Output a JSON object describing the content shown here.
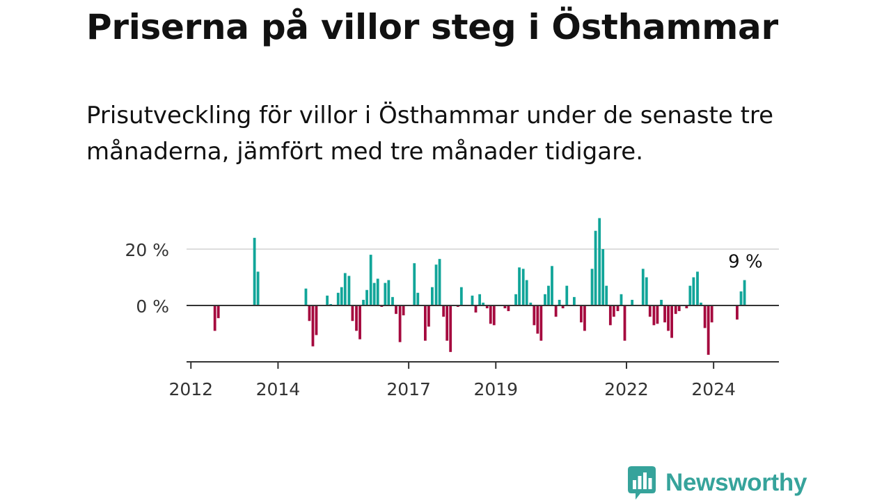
{
  "title": "Priserna på villor steg i Östhammar",
  "subtitle": "Prisutveckling för villor i Östhammar under de senaste tre månaderna, jämfört med tre månader tidigare.",
  "brand": {
    "name": "Newsworthy",
    "color": "#36a39b"
  },
  "colors": {
    "positive": "#11a599",
    "negative": "#a5093e",
    "grid": "#dddddd",
    "zero_line": "#333333",
    "axis": "#333333"
  },
  "chart_data": {
    "type": "bar",
    "title": "",
    "xlabel": "",
    "ylabel": "",
    "x_unit": "year",
    "xlim": [
      2011.9,
      2025.5
    ],
    "ylim": [
      -20,
      30
    ],
    "grid": true,
    "y_ticks": [
      {
        "value": 0,
        "label": "0 %"
      },
      {
        "value": 20,
        "label": "20 %"
      }
    ],
    "x_ticks": [
      {
        "value": 2012,
        "label": "2012"
      },
      {
        "value": 2014,
        "label": "2014"
      },
      {
        "value": 2017,
        "label": "2017"
      },
      {
        "value": 2019,
        "label": "2019"
      },
      {
        "value": 2022,
        "label": "2022"
      },
      {
        "value": 2024,
        "label": "2024"
      }
    ],
    "annotation": {
      "text": "9 %",
      "x": 2024.7,
      "y": 9
    },
    "points": [
      [
        2012.55,
        -9
      ],
      [
        2012.63,
        -4.5
      ],
      [
        2013.46,
        24
      ],
      [
        2013.54,
        12
      ],
      [
        2014.64,
        6
      ],
      [
        2014.72,
        -5.5
      ],
      [
        2014.8,
        -14.5
      ],
      [
        2014.88,
        -10.5
      ],
      [
        2015.13,
        3.5
      ],
      [
        2015.21,
        0.5
      ],
      [
        2015.38,
        4.5
      ],
      [
        2015.46,
        6.5
      ],
      [
        2015.54,
        11.5
      ],
      [
        2015.63,
        10.5
      ],
      [
        2015.71,
        -5.5
      ],
      [
        2015.8,
        -9
      ],
      [
        2015.88,
        -12
      ],
      [
        2015.96,
        2
      ],
      [
        2016.04,
        5.5
      ],
      [
        2016.13,
        18
      ],
      [
        2016.21,
        8
      ],
      [
        2016.29,
        9.5
      ],
      [
        2016.38,
        -0.5
      ],
      [
        2016.46,
        8
      ],
      [
        2016.54,
        9
      ],
      [
        2016.63,
        3
      ],
      [
        2016.71,
        -3
      ],
      [
        2016.8,
        -13
      ],
      [
        2016.88,
        -3.5
      ],
      [
        2017.13,
        15
      ],
      [
        2017.21,
        4.5
      ],
      [
        2017.38,
        -12.5
      ],
      [
        2017.46,
        -7.5
      ],
      [
        2017.54,
        6.5
      ],
      [
        2017.63,
        14.5
      ],
      [
        2017.71,
        16.5
      ],
      [
        2017.8,
        -4
      ],
      [
        2017.88,
        -12.5
      ],
      [
        2017.96,
        -16.5
      ],
      [
        2018.13,
        -0.5
      ],
      [
        2018.21,
        6.5
      ],
      [
        2018.46,
        3.5
      ],
      [
        2018.54,
        -2.5
      ],
      [
        2018.63,
        4
      ],
      [
        2018.71,
        1
      ],
      [
        2018.8,
        -1
      ],
      [
        2018.88,
        -6.5
      ],
      [
        2018.96,
        -7
      ],
      [
        2019.21,
        -1
      ],
      [
        2019.29,
        -2
      ],
      [
        2019.46,
        4
      ],
      [
        2019.54,
        13.5
      ],
      [
        2019.63,
        13
      ],
      [
        2019.71,
        9
      ],
      [
        2019.8,
        1
      ],
      [
        2019.88,
        -7
      ],
      [
        2019.96,
        -10
      ],
      [
        2020.04,
        -12.5
      ],
      [
        2020.13,
        4
      ],
      [
        2020.21,
        7
      ],
      [
        2020.29,
        14
      ],
      [
        2020.38,
        -4
      ],
      [
        2020.46,
        2
      ],
      [
        2020.54,
        -1
      ],
      [
        2020.63,
        7
      ],
      [
        2020.8,
        3
      ],
      [
        2020.96,
        -6
      ],
      [
        2021.04,
        -9
      ],
      [
        2021.21,
        13
      ],
      [
        2021.29,
        26.5
      ],
      [
        2021.38,
        31
      ],
      [
        2021.46,
        20
      ],
      [
        2021.54,
        7
      ],
      [
        2021.63,
        -7
      ],
      [
        2021.71,
        -4
      ],
      [
        2021.8,
        -2
      ],
      [
        2021.88,
        4
      ],
      [
        2021.96,
        -12.5
      ],
      [
        2022.13,
        2
      ],
      [
        2022.38,
        13
      ],
      [
        2022.46,
        10
      ],
      [
        2022.54,
        -4
      ],
      [
        2022.63,
        -7
      ],
      [
        2022.71,
        -6.5
      ],
      [
        2022.8,
        2
      ],
      [
        2022.88,
        -6
      ],
      [
        2022.96,
        -9
      ],
      [
        2023.04,
        -11.5
      ],
      [
        2023.13,
        -3
      ],
      [
        2023.21,
        -2
      ],
      [
        2023.38,
        -1
      ],
      [
        2023.46,
        7
      ],
      [
        2023.54,
        10
      ],
      [
        2023.63,
        12
      ],
      [
        2023.71,
        1
      ],
      [
        2023.8,
        -8
      ],
      [
        2023.88,
        -17.5
      ],
      [
        2023.96,
        -6
      ],
      [
        2024.54,
        -5
      ],
      [
        2024.63,
        5
      ],
      [
        2024.71,
        9
      ]
    ]
  }
}
